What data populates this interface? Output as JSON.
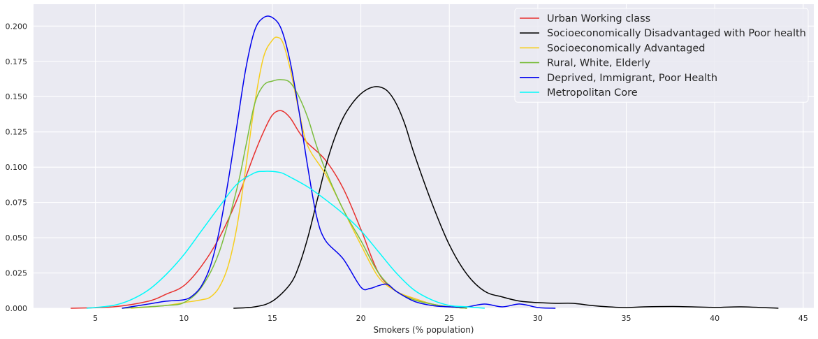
{
  "chart_data": {
    "type": "line",
    "title": "",
    "xlabel": "Smokers (% population)",
    "ylabel": "",
    "xlim": [
      1.5,
      45.6
    ],
    "ylim": [
      0,
      0.2155
    ],
    "xticks": [
      5,
      10,
      15,
      20,
      25,
      30,
      35,
      40,
      45
    ],
    "xtick_labels": [
      "5",
      "10",
      "15",
      "20",
      "25",
      "30",
      "35",
      "40",
      "45"
    ],
    "yticks": [
      0,
      0.025,
      0.05,
      0.075,
      0.1,
      0.125,
      0.15,
      0.175,
      0.2
    ],
    "ytick_labels": [
      "0.000",
      "0.025",
      "0.050",
      "0.075",
      "0.100",
      "0.125",
      "0.150",
      "0.175",
      "0.200"
    ],
    "grid": true,
    "background": "#eaeaf2",
    "legend_position": "top-right",
    "series": [
      {
        "name": "Urban Working class",
        "color": "#e8312f",
        "x": [
          3.6,
          6,
          8,
          9,
          10,
          11,
          12,
          13,
          14,
          14.5,
          15,
          15.5,
          16,
          16.5,
          17,
          18,
          19,
          20,
          21,
          22,
          23,
          24,
          25,
          26
        ],
        "y": [
          0,
          0.001,
          0.005,
          0.01,
          0.016,
          0.03,
          0.05,
          0.077,
          0.11,
          0.125,
          0.137,
          0.14,
          0.135,
          0.125,
          0.117,
          0.105,
          0.085,
          0.056,
          0.025,
          0.012,
          0.007,
          0.003,
          0.001,
          0
        ]
      },
      {
        "name": "Socioeconomically Disadvantaged with Poor health",
        "color": "#000000",
        "x": [
          12.8,
          14,
          15,
          16,
          16.5,
          17,
          17.5,
          18,
          18.5,
          19,
          19.5,
          20,
          20.5,
          21,
          21.5,
          22,
          22.5,
          23,
          24,
          25,
          26,
          27,
          28,
          29,
          30,
          31,
          32,
          33,
          34,
          35,
          36,
          38,
          40,
          41.5,
          43.6
        ],
        "y": [
          0,
          0.001,
          0.005,
          0.017,
          0.03,
          0.05,
          0.075,
          0.1,
          0.12,
          0.135,
          0.145,
          0.152,
          0.156,
          0.157,
          0.154,
          0.145,
          0.13,
          0.11,
          0.075,
          0.045,
          0.024,
          0.012,
          0.008,
          0.005,
          0.004,
          0.0035,
          0.0035,
          0.002,
          0.001,
          0.0005,
          0.001,
          0.0012,
          0.0006,
          0.001,
          0
        ]
      },
      {
        "name": "Socioeconomically Advantaged",
        "color": "#f6ce1e",
        "x": [
          7,
          9,
          10,
          11,
          11.5,
          12,
          12.5,
          13,
          13.5,
          14,
          14.5,
          15,
          15.3,
          15.6,
          16,
          16.5,
          17,
          18,
          19,
          20,
          21,
          22,
          23,
          24,
          25,
          26
        ],
        "y": [
          0,
          0.002,
          0.004,
          0.006,
          0.008,
          0.015,
          0.03,
          0.058,
          0.1,
          0.145,
          0.178,
          0.19,
          0.192,
          0.188,
          0.17,
          0.14,
          0.115,
          0.095,
          0.07,
          0.045,
          0.022,
          0.012,
          0.007,
          0.003,
          0.001,
          0
        ]
      },
      {
        "name": "Rural, White, Elderly",
        "color": "#7bbd3e",
        "x": [
          6.5,
          8,
          9,
          10,
          11,
          12,
          13,
          13.5,
          14,
          14.5,
          15,
          15.5,
          16,
          16.5,
          17,
          17.5,
          18,
          19,
          20,
          21,
          22,
          23,
          24,
          25,
          26
        ],
        "y": [
          0,
          0.001,
          0.002,
          0.004,
          0.015,
          0.04,
          0.085,
          0.115,
          0.145,
          0.158,
          0.161,
          0.162,
          0.16,
          0.15,
          0.135,
          0.115,
          0.098,
          0.07,
          0.048,
          0.025,
          0.012,
          0.006,
          0.003,
          0.001,
          0
        ]
      },
      {
        "name": "Deprived, Immigrant, Poor Health",
        "color": "#0000ee",
        "x": [
          6.5,
          8,
          9,
          10,
          10.5,
          11,
          11.5,
          12,
          12.5,
          13,
          13.5,
          14,
          14.5,
          15,
          15.5,
          16,
          16.5,
          17,
          17.5,
          18,
          19,
          20,
          20.5,
          21,
          21.5,
          22,
          23,
          24,
          25,
          26,
          27,
          28,
          29,
          30,
          31
        ],
        "y": [
          0,
          0.003,
          0.005,
          0.006,
          0.009,
          0.016,
          0.03,
          0.055,
          0.09,
          0.13,
          0.17,
          0.197,
          0.206,
          0.206,
          0.198,
          0.175,
          0.14,
          0.1,
          0.065,
          0.048,
          0.035,
          0.015,
          0.014,
          0.016,
          0.017,
          0.012,
          0.005,
          0.002,
          0.001,
          0.001,
          0.003,
          0.001,
          0.003,
          0.0005,
          0
        ]
      },
      {
        "name": "Metropolitan Core",
        "color": "#00fafa",
        "x": [
          4.5,
          6,
          7,
          8,
          9,
          10,
          11,
          12,
          13,
          14,
          14.5,
          15,
          15.5,
          16,
          17,
          18,
          19,
          20,
          21,
          22,
          23,
          24,
          25,
          26,
          27
        ],
        "y": [
          0,
          0.002,
          0.006,
          0.013,
          0.024,
          0.038,
          0.055,
          0.072,
          0.088,
          0.096,
          0.097,
          0.097,
          0.096,
          0.093,
          0.086,
          0.077,
          0.067,
          0.055,
          0.04,
          0.025,
          0.013,
          0.006,
          0.002,
          0.001,
          0
        ]
      }
    ]
  }
}
